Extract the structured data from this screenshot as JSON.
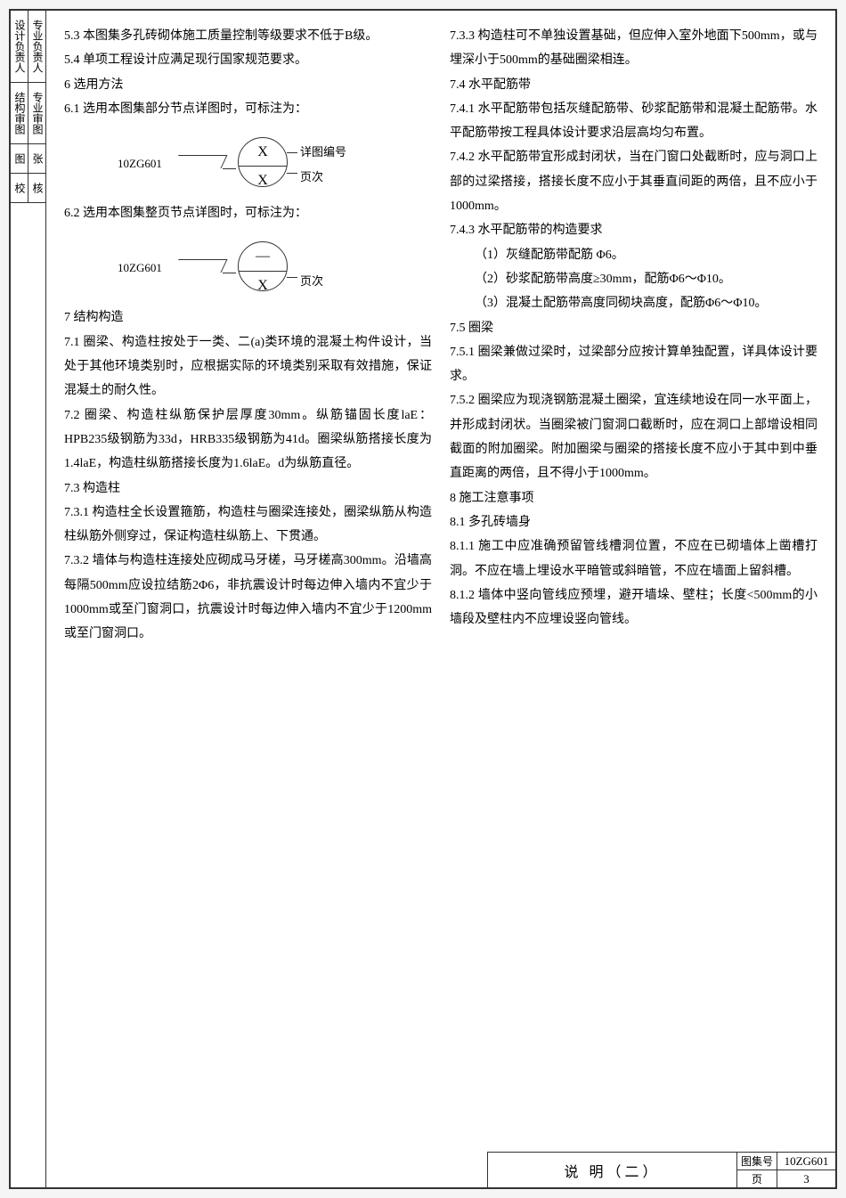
{
  "sideTabs": {
    "row1a": "设计负责人",
    "row1b": "专业负责人",
    "row2a": "结构审图",
    "row2b": "专业审图",
    "row3a": "图",
    "row3b": "张",
    "row4a": "校",
    "row4b": "核"
  },
  "left": {
    "p1": "5.3 本图集多孔砖砌体施工质量控制等级要求不低于B级。",
    "p2": "5.4 单项工程设计应满足现行国家规范要求。",
    "p3": "6 选用方法",
    "p4": "6.1 选用本图集部分节点详图时，可标注为：",
    "p5": "6.2 选用本图集整页节点详图时，可标注为：",
    "p6": "7 结构构造",
    "p7": "7.1 圈梁、构造柱按处于一类、二(a)类环境的混凝土构件设计，当处于其他环境类别时，应根据实际的环境类别采取有效措施，保证混凝土的耐久性。",
    "p8": "7.2 圈梁、构造柱纵筋保护层厚度30mm。纵筋锚固长度laE：HPB235级钢筋为33d，HRB335级钢筋为41d。圈梁纵筋搭接长度为1.4laE，构造柱纵筋搭接长度为1.6laE。d为纵筋直径。",
    "p9": "7.3 构造柱",
    "p10": "7.3.1 构造柱全长设置箍筋，构造柱与圈梁连接处，圈梁纵筋从构造柱纵筋外侧穿过，保证构造柱纵筋上、下贯通。",
    "p11": "7.3.2 墙体与构造柱连接处应砌成马牙槎，马牙槎高300mm。沿墙高每隔500mm应设拉结筋2Φ6，非抗震设计时每边伸入墙内不宜少于1000mm或至门窗洞口，抗震设计时每边伸入墙内不宜少于1200mm或至门窗洞口。",
    "diag1": {
      "label": "10ZG601",
      "top": "X",
      "bottom": "X",
      "noteTop": "详图编号",
      "noteBottom": "页次"
    },
    "diag2": {
      "label": "10ZG601",
      "top": "—",
      "bottom": "X",
      "noteBottom": "页次"
    }
  },
  "right": {
    "p1": "7.3.3 构造柱可不单独设置基础，但应伸入室外地面下500mm，或与埋深小于500mm的基础圈梁相连。",
    "p2": "7.4 水平配筋带",
    "p3": "7.4.1 水平配筋带包括灰缝配筋带、砂浆配筋带和混凝土配筋带。水平配筋带按工程具体设计要求沿层高均匀布置。",
    "p4": "7.4.2 水平配筋带宜形成封闭状，当在门窗口处截断时，应与洞口上部的过梁搭接，搭接长度不应小于其垂直间距的两倍，且不应小于1000mm。",
    "p5": "7.4.3 水平配筋带的构造要求",
    "p6": "（1）灰缝配筋带配筋 Φ6。",
    "p7": "（2）砂浆配筋带高度≥30mm，配筋Φ6～Φ10。",
    "p8": "（3）混凝土配筋带高度同砌块高度，配筋Φ6～Φ10。",
    "p9": "7.5 圈梁",
    "p10": "7.5.1 圈梁兼做过梁时，过梁部分应按计算单独配置，详具体设计要求。",
    "p11": "7.5.2 圈梁应为现浇钢筋混凝土圈梁，宜连续地设在同一水平面上，并形成封闭状。当圈梁被门窗洞口截断时，应在洞口上部增设相同截面的附加圈梁。附加圈梁与圈梁的搭接长度不应小于其中到中垂直距离的两倍，且不得小于1000mm。",
    "p12": "8 施工注意事项",
    "p13": "8.1 多孔砖墙身",
    "p14": "8.1.1 施工中应准确预留管线槽洞位置，不应在已砌墙体上凿槽打洞。不应在墙上埋设水平暗管或斜暗管，不应在墙面上留斜槽。",
    "p15": "8.1.2 墙体中竖向管线应预埋，避开墙垛、壁柱；长度<500mm的小墙段及壁柱内不应埋设竖向管线。"
  },
  "titleBlock": {
    "title": "说 明（二）",
    "codeLabel": "图集号",
    "codeValue": "10ZG601",
    "pageLabel": "页",
    "pageValue": "3"
  }
}
